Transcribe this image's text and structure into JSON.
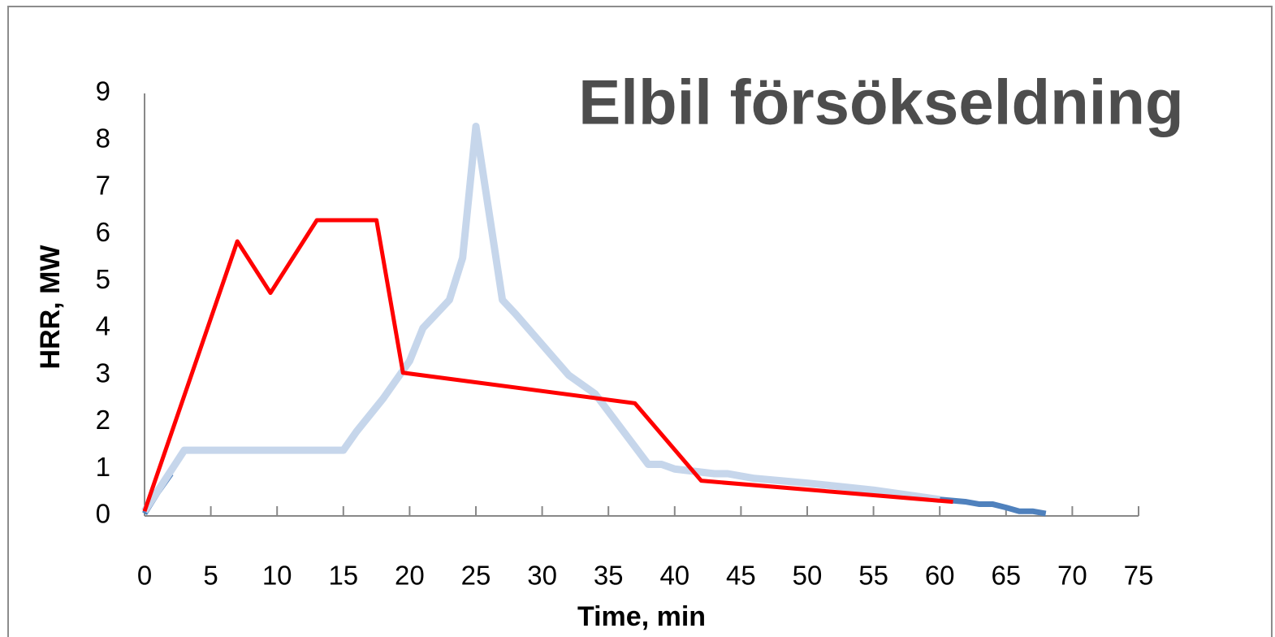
{
  "chart_data": {
    "type": "line",
    "title": "Elbil försökseldning",
    "x_label": "Time, min",
    "y_label": "HRR, MW",
    "xlim": [
      0,
      75
    ],
    "xticks": [
      0,
      5,
      10,
      15,
      20,
      25,
      30,
      35,
      40,
      45,
      50,
      55,
      60,
      65,
      70,
      75
    ],
    "ylim": [
      0,
      9
    ],
    "yticks": [
      0,
      1,
      2,
      3,
      4,
      5,
      6,
      7,
      8,
      9
    ],
    "series": [
      {
        "color": "#4f81bd",
        "width": 7,
        "x": [
          0,
          1,
          2,
          30,
          58,
          60,
          62,
          63,
          64,
          65,
          66,
          67,
          68
        ],
        "values": [
          0.05,
          0.5,
          0.9,
          null,
          0.4,
          0.35,
          0.3,
          0.25,
          0.25,
          0.18,
          0.1,
          0.1,
          0.05
        ]
      },
      {
        "color": "#c6d6eb",
        "width": 9,
        "x": [
          0,
          3,
          15,
          16,
          18,
          20,
          21,
          23,
          24,
          25,
          27,
          28,
          32,
          34,
          38,
          39,
          40,
          43,
          44,
          46,
          50,
          55,
          60
        ],
        "values": [
          0.1,
          1.4,
          1.4,
          1.8,
          2.5,
          3.3,
          4.0,
          4.6,
          5.5,
          8.3,
          4.6,
          4.3,
          3.0,
          2.6,
          1.1,
          1.1,
          1.0,
          0.9,
          0.9,
          0.8,
          0.7,
          0.55,
          0.35
        ]
      },
      {
        "color": "#ff0000",
        "width": 5,
        "x": [
          0,
          7,
          9.5,
          13,
          17.5,
          19.5,
          37,
          42,
          61
        ],
        "values": [
          0.1,
          5.85,
          4.75,
          6.3,
          6.3,
          3.05,
          2.4,
          0.75,
          0.3
        ]
      }
    ]
  }
}
